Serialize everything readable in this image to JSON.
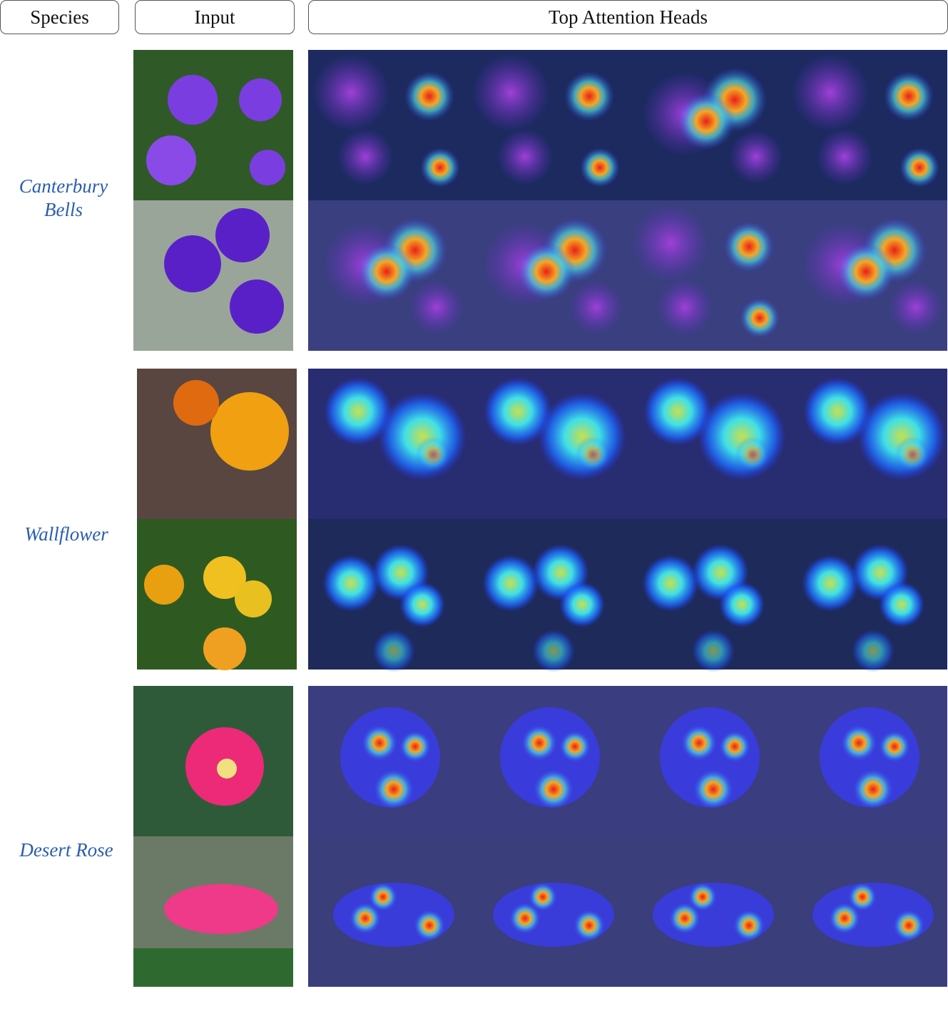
{
  "header": {
    "species": "Species",
    "input": "Input",
    "heads": "Top Attention Heads"
  },
  "groups": [
    {
      "species_lines": [
        "Canterbury",
        "Bells"
      ]
    },
    {
      "species_lines": [
        "Wallflower"
      ]
    },
    {
      "species_lines": [
        "Desert Rose"
      ]
    }
  ]
}
